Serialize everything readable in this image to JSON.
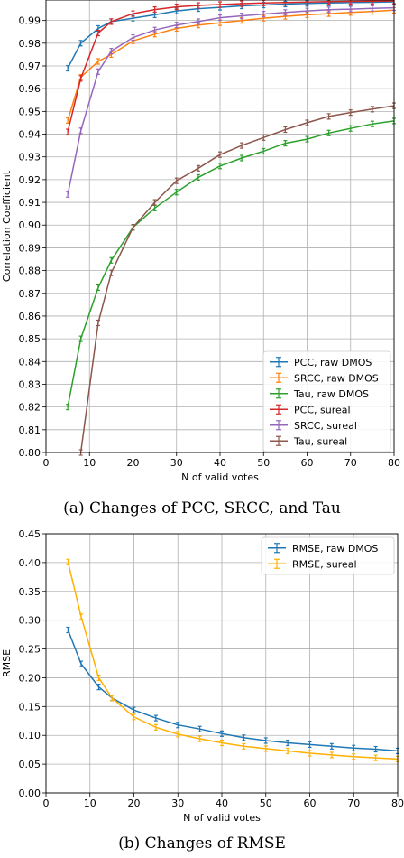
{
  "chart_data": [
    {
      "type": "line",
      "xlabel": "N of valid votes",
      "ylabel": "Correlation Coefficient",
      "xlim": [
        0,
        80
      ],
      "ylim": [
        0.8,
        0.999
      ],
      "xticks": [
        0,
        10,
        20,
        30,
        40,
        50,
        60,
        70,
        80
      ],
      "xtick_labels": [
        "0",
        "10",
        "20",
        "30",
        "40",
        "50",
        "60",
        "70",
        "80"
      ],
      "yticks": [
        0.8,
        0.81,
        0.82,
        0.83,
        0.84,
        0.85,
        0.86,
        0.87,
        0.88,
        0.89,
        0.9,
        0.91,
        0.92,
        0.93,
        0.94,
        0.95,
        0.96,
        0.97,
        0.98,
        0.99
      ],
      "ytick_labels": [
        "0.80",
        "0.81",
        "0.82",
        "0.83",
        "0.84",
        "0.85",
        "0.86",
        "0.87",
        "0.88",
        "0.89",
        "0.90",
        "0.91",
        "0.92",
        "0.93",
        "0.94",
        "0.95",
        "0.96",
        "0.97",
        "0.98",
        "0.99"
      ],
      "grid": true,
      "legend_position": "bottom-right",
      "error_bars": true,
      "series": [
        {
          "name": "PCC, raw DMOS",
          "color": "#1f77b4",
          "x": [
            5,
            8,
            12,
            15,
            20,
            25,
            30,
            35,
            40,
            45,
            50,
            55,
            60,
            65,
            70,
            75,
            80
          ],
          "y": [
            0.969,
            0.98,
            0.9865,
            0.9895,
            0.991,
            0.9925,
            0.9942,
            0.9952,
            0.9958,
            0.9964,
            0.9968,
            0.9972,
            0.9975,
            0.9977,
            0.9979,
            0.998,
            0.9982
          ]
        },
        {
          "name": "SRCC, raw DMOS",
          "color": "#ff7f0e",
          "x": [
            5,
            8,
            12,
            15,
            20,
            25,
            30,
            35,
            40,
            45,
            50,
            55,
            60,
            65,
            70,
            75,
            80
          ],
          "y": [
            0.946,
            0.965,
            0.972,
            0.975,
            0.981,
            0.984,
            0.9865,
            0.988,
            0.989,
            0.99,
            0.991,
            0.9918,
            0.9925,
            0.993,
            0.9935,
            0.994,
            0.9945
          ]
        },
        {
          "name": "Tau, raw DMOS",
          "color": "#2ca02c",
          "x": [
            5,
            8,
            12,
            15,
            20,
            25,
            30,
            35,
            40,
            45,
            50,
            55,
            60,
            65,
            70,
            75,
            80
          ],
          "y": [
            0.82,
            0.85,
            0.8725,
            0.8845,
            0.899,
            0.9075,
            0.9145,
            0.921,
            0.926,
            0.9295,
            0.9325,
            0.936,
            0.9378,
            0.9405,
            0.9425,
            0.9445,
            0.9458
          ]
        },
        {
          "name": "PCC, sureal",
          "color": "#d62728",
          "x": [
            5,
            8,
            12,
            15,
            20,
            25,
            30,
            35,
            40,
            45,
            50,
            55,
            60,
            65,
            70,
            75,
            80
          ],
          "y": [
            0.941,
            0.9645,
            0.9845,
            0.9895,
            0.993,
            0.9948,
            0.996,
            0.9966,
            0.997,
            0.9974,
            0.9977,
            0.9979,
            0.9981,
            0.9983,
            0.9984,
            0.9985,
            0.9986
          ]
        },
        {
          "name": "SRCC, sureal",
          "color": "#9467bd",
          "x": [
            5,
            8,
            12,
            15,
            20,
            25,
            30,
            35,
            40,
            45,
            50,
            55,
            60,
            65,
            70,
            75,
            80
          ],
          "y": [
            0.9135,
            0.9415,
            0.9675,
            0.9765,
            0.9825,
            0.9858,
            0.988,
            0.9895,
            0.9912,
            0.992,
            0.9928,
            0.9935,
            0.9942,
            0.9947,
            0.995,
            0.9953,
            0.9956
          ]
        },
        {
          "name": "Tau, sureal",
          "color": "#8c564b",
          "x": [
            8,
            12,
            15,
            20,
            25,
            30,
            35,
            40,
            45,
            50,
            55,
            60,
            65,
            70,
            75,
            80
          ],
          "y": [
            0.8,
            0.857,
            0.879,
            0.899,
            0.91,
            0.9195,
            0.925,
            0.931,
            0.935,
            0.9385,
            0.942,
            0.945,
            0.9478,
            0.9495,
            0.951,
            0.9525
          ]
        }
      ]
    },
    {
      "type": "line",
      "xlabel": "N of valid votes",
      "ylabel": "RMSE",
      "xlim": [
        0,
        80
      ],
      "ylim": [
        0.0,
        0.45
      ],
      "xticks": [
        0,
        10,
        20,
        30,
        40,
        50,
        60,
        70,
        80
      ],
      "xtick_labels": [
        "0",
        "10",
        "20",
        "30",
        "40",
        "50",
        "60",
        "70",
        "80"
      ],
      "yticks": [
        0.0,
        0.05,
        0.1,
        0.15,
        0.2,
        0.25,
        0.3,
        0.35,
        0.4,
        0.45
      ],
      "ytick_labels": [
        "0.00",
        "0.05",
        "0.10",
        "0.15",
        "0.20",
        "0.25",
        "0.30",
        "0.35",
        "0.40",
        "0.45"
      ],
      "grid": true,
      "legend_position": "top-right",
      "error_bars": true,
      "series": [
        {
          "name": "RMSE, raw DMOS",
          "color": "#1f77b4",
          "x": [
            5,
            8,
            12,
            15,
            20,
            25,
            30,
            35,
            40,
            45,
            50,
            55,
            60,
            65,
            70,
            75,
            80
          ],
          "y": [
            0.283,
            0.224,
            0.184,
            0.165,
            0.144,
            0.13,
            0.118,
            0.111,
            0.103,
            0.096,
            0.091,
            0.087,
            0.084,
            0.081,
            0.078,
            0.076,
            0.073
          ]
        },
        {
          "name": "RMSE, sureal",
          "color": "#ffb000",
          "x": [
            5,
            8,
            12,
            15,
            20,
            25,
            30,
            35,
            40,
            45,
            50,
            55,
            60,
            65,
            70,
            75,
            80
          ],
          "y": [
            0.401,
            0.306,
            0.2,
            0.165,
            0.132,
            0.114,
            0.102,
            0.094,
            0.087,
            0.081,
            0.077,
            0.073,
            0.069,
            0.066,
            0.063,
            0.061,
            0.059
          ]
        }
      ]
    }
  ],
  "captions": {
    "a": "(a) Changes of PCC, SRCC, and Tau",
    "b": "(b) Changes of RMSE"
  }
}
